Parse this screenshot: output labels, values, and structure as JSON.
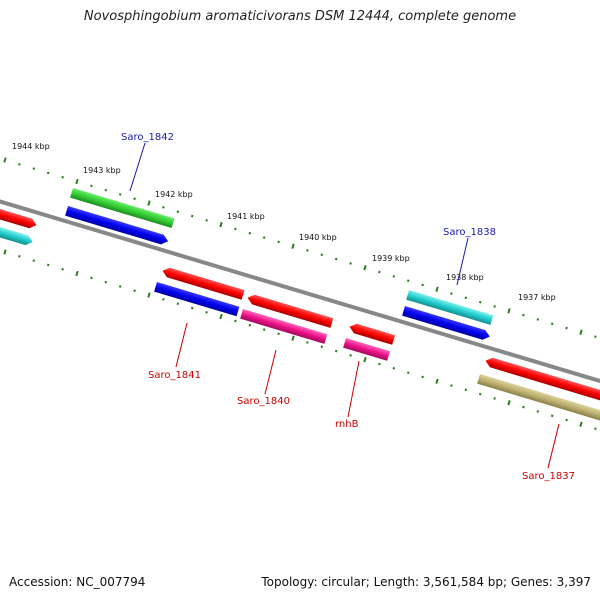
{
  "title": "Novosphingobium aromaticivorans DSM 12444, complete genome",
  "footer": {
    "accession": "Accession: NC_007794",
    "summary": "Topology: circular; Length: 3,561,584 bp; Genes: 3,397"
  },
  "colors": {
    "backbone": "#888888",
    "tick": "#2e7d1f",
    "label_blue": "#1a1ab0",
    "label_red": "#cc0000"
  },
  "scale": {
    "unit": "kbp",
    "labels": [
      "1944 kbp",
      "1943 kbp",
      "1942 kbp",
      "1941 kbp",
      "1940 kbp",
      "1939 kbp",
      "1938 kbp",
      "1937 kbp"
    ]
  },
  "genes": [
    {
      "name": "Saro_1842",
      "strand": "+",
      "color": "#33cc33",
      "labeled": true
    },
    {
      "name": "Saro_1841",
      "strand": "-",
      "color": "#1010e0",
      "labeled": true
    },
    {
      "name": "Saro_1840",
      "strand": "-",
      "color": "#ee1188",
      "labeled": true
    },
    {
      "name": "rnhB",
      "strand": "-",
      "color": "#ee1188",
      "labeled": true
    },
    {
      "name": "Saro_1838",
      "strand": "+",
      "color": "#22cccc",
      "labeled": true
    },
    {
      "name": "Saro_1837",
      "strand": "-",
      "color": "#bbb070",
      "labeled": true
    }
  ]
}
